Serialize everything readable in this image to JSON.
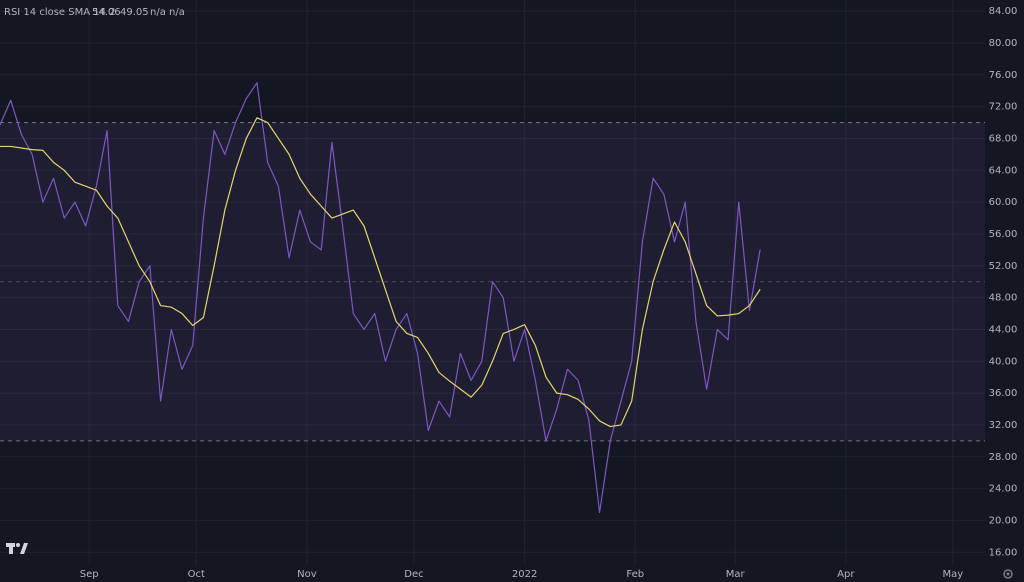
{
  "chart_data": {
    "type": "line",
    "title": "RSI 14 close SMA 14 2",
    "status": "n/a n/a",
    "x": [
      0,
      3,
      6,
      9,
      12,
      15,
      18,
      21,
      24,
      27,
      30,
      33,
      36,
      39,
      42,
      45,
      48,
      51,
      54,
      57,
      60,
      63,
      66,
      69,
      72,
      75,
      78,
      81,
      84,
      87,
      90,
      93,
      96,
      99,
      102,
      105,
      108,
      111,
      114,
      117,
      120,
      123,
      126,
      129,
      132,
      135,
      138,
      141,
      144,
      147,
      150,
      153,
      156,
      159,
      162,
      165,
      168,
      171,
      174,
      177,
      180,
      183,
      186,
      189,
      192,
      195,
      198,
      201,
      204,
      207,
      210,
      213
    ],
    "series": [
      {
        "name": "RSI",
        "color": "#7e57c2",
        "values": [
          69.7,
          72.8,
          68.5,
          66,
          60,
          63,
          58,
          60,
          57,
          62,
          69,
          47,
          45,
          50,
          52,
          35,
          44,
          39,
          42,
          58,
          69,
          66,
          70,
          73,
          75,
          65,
          62,
          53,
          59,
          55,
          54,
          67.5,
          57,
          46,
          44,
          46,
          40,
          44,
          46,
          41,
          31.3,
          35,
          33,
          41,
          37.6,
          40,
          50,
          48,
          40,
          44,
          37.6,
          30,
          34,
          39,
          37.6,
          32.6,
          21,
          30,
          35,
          40,
          55,
          63,
          61,
          55,
          60,
          45,
          36.5,
          44,
          42.7,
          60,
          46.4,
          54.06
        ]
      },
      {
        "name": "SMA",
        "color": "#e6d46a",
        "values": [
          67,
          67,
          66.8,
          66.6,
          66.5,
          65,
          64,
          62.5,
          62,
          61.5,
          59.5,
          58,
          55,
          52,
          50,
          47,
          46.8,
          46,
          44.5,
          45.5,
          52,
          59,
          64,
          68,
          70.6,
          70,
          68,
          66,
          63,
          61,
          59.5,
          58,
          58.5,
          59,
          57,
          53,
          49,
          45,
          43.5,
          43,
          41,
          38.6,
          37.5,
          36.5,
          35.5,
          37,
          40,
          43.5,
          44,
          44.6,
          42,
          38,
          36,
          35.8,
          35.2,
          34,
          32.5,
          31.8,
          32,
          35,
          44,
          50,
          54,
          57.5,
          55,
          51,
          47,
          45.7,
          45.8,
          46,
          47,
          49.05
        ]
      }
    ],
    "bands": {
      "upper": 70,
      "middle": 50,
      "lower": 30,
      "fill": "#7e57c2"
    },
    "xlim": [
      0,
      276
    ],
    "xticks": [
      {
        "value": 25,
        "label": "Sep"
      },
      {
        "value": 55,
        "label": "Oct"
      },
      {
        "value": 86,
        "label": "Nov"
      },
      {
        "value": 116,
        "label": "Dec"
      },
      {
        "value": 147,
        "label": "2022"
      },
      {
        "value": 178,
        "label": "Feb"
      },
      {
        "value": 206,
        "label": "Mar"
      },
      {
        "value": 237,
        "label": "Apr"
      },
      {
        "value": 267,
        "label": "May"
      }
    ],
    "ylim": [
      14.4,
      85.4
    ],
    "yticks": [
      {
        "value": 16,
        "label": "16.00"
      },
      {
        "value": 20,
        "label": "20.00"
      },
      {
        "value": 24,
        "label": "24.00"
      },
      {
        "value": 28,
        "label": "28.00"
      },
      {
        "value": 32,
        "label": "32.00"
      },
      {
        "value": 36,
        "label": "36.00"
      },
      {
        "value": 40,
        "label": "40.00"
      },
      {
        "value": 44,
        "label": "44.00"
      },
      {
        "value": 48,
        "label": "48.00"
      },
      {
        "value": 52,
        "label": "52.00"
      },
      {
        "value": 56,
        "label": "56.00"
      },
      {
        "value": 60,
        "label": "60.00"
      },
      {
        "value": 64,
        "label": "64.00"
      },
      {
        "value": 68,
        "label": "68.00"
      },
      {
        "value": 72,
        "label": "72.00"
      },
      {
        "value": 76,
        "label": "76.00"
      },
      {
        "value": 80,
        "label": "80.00"
      },
      {
        "value": 84,
        "label": "84.00"
      }
    ],
    "grid": true
  }
}
